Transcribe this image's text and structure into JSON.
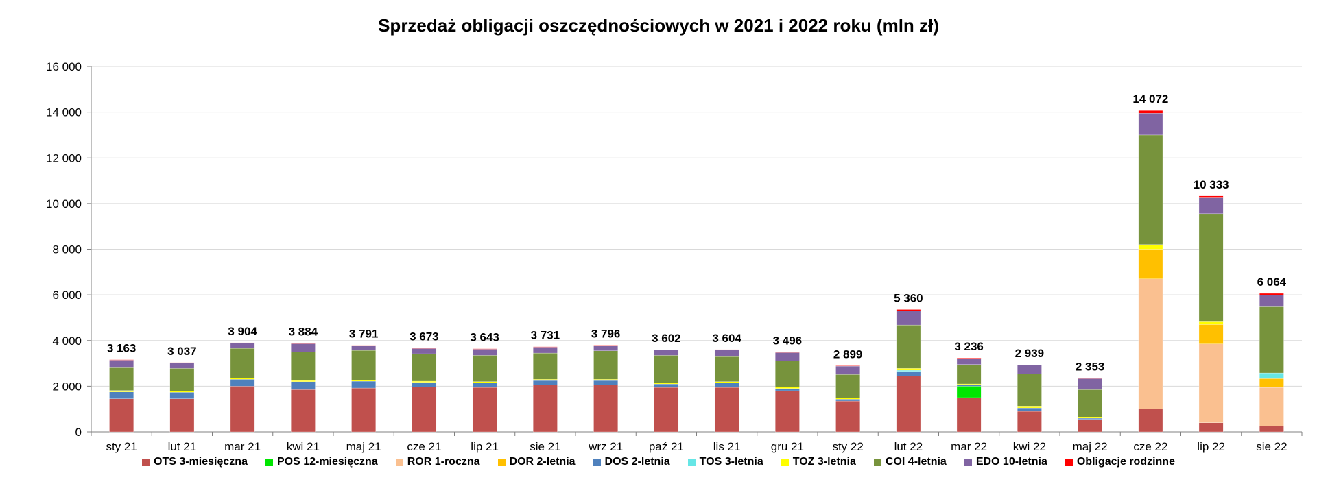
{
  "chart_data": {
    "type": "bar",
    "stacked": true,
    "title": "Sprzedaż obligacji oszczędnościowych w 2021 i 2022 roku (mln zł)",
    "xlabel": "",
    "ylabel": "",
    "ylim": [
      0,
      16000
    ],
    "yticks": [
      0,
      2000,
      4000,
      6000,
      8000,
      10000,
      12000,
      14000,
      16000
    ],
    "ytick_labels": [
      "0",
      "2 000",
      "4 000",
      "6 000",
      "8 000",
      "10 000",
      "12 000",
      "14 000",
      "16 000"
    ],
    "grid": true,
    "legend_position": "bottom",
    "categories": [
      "sty 21",
      "lut 21",
      "mar 21",
      "kwi 21",
      "maj 21",
      "cze 21",
      "lip 21",
      "sie 21",
      "wrz 21",
      "paź 21",
      "lis 21",
      "gru 21",
      "sty 22",
      "lut 22",
      "mar 22",
      "kwi 22",
      "maj 22",
      "cze 22",
      "lip 22",
      "sie 22"
    ],
    "totals": [
      3163,
      3037,
      3904,
      3884,
      3791,
      3673,
      3643,
      3731,
      3796,
      3602,
      3604,
      3496,
      2899,
      5360,
      3236,
      2939,
      2353,
      14072,
      10333,
      6064
    ],
    "total_labels": [
      "3 163",
      "3 037",
      "3 904",
      "3 884",
      "3 791",
      "3 673",
      "3 643",
      "3 731",
      "3 796",
      "3 602",
      "3 604",
      "3 496",
      "2 899",
      "5 360",
      "3 236",
      "2 939",
      "2 353",
      "14 072",
      "10 333",
      "6 064"
    ],
    "series": [
      {
        "name": "OTS 3-miesięczna",
        "color": "#C0504D",
        "values": [
          1450,
          1450,
          2000,
          1850,
          1920,
          1970,
          1950,
          2050,
          2050,
          1950,
          1950,
          1800,
          1350,
          2450,
          1500,
          900,
          550,
          1000,
          400,
          250
        ]
      },
      {
        "name": "POS 12-miesięczna",
        "color": "#00E600",
        "values": [
          0,
          0,
          0,
          0,
          0,
          0,
          0,
          0,
          0,
          0,
          0,
          0,
          0,
          0,
          500,
          0,
          0,
          0,
          0,
          0
        ]
      },
      {
        "name": "ROR 1-roczna",
        "color": "#FAC090",
        "values": [
          0,
          0,
          0,
          0,
          0,
          0,
          0,
          0,
          0,
          0,
          0,
          0,
          0,
          0,
          0,
          0,
          0,
          5700,
          3450,
          1700
        ]
      },
      {
        "name": "DOR 2-letnia",
        "color": "#FFC000",
        "values": [
          0,
          0,
          0,
          0,
          0,
          0,
          0,
          0,
          0,
          0,
          0,
          0,
          0,
          0,
          0,
          0,
          0,
          1300,
          850,
          380
        ]
      },
      {
        "name": "DOS 2-letnia",
        "color": "#4F81BD",
        "values": [
          300,
          280,
          300,
          350,
          300,
          200,
          200,
          200,
          200,
          150,
          200,
          100,
          80,
          200,
          50,
          150,
          50,
          0,
          0,
          0
        ]
      },
      {
        "name": "TOS 3-letnia",
        "color": "#66E6E6",
        "values": [
          0,
          0,
          0,
          0,
          0,
          0,
          0,
          0,
          0,
          0,
          0,
          0,
          0,
          50,
          0,
          0,
          0,
          0,
          0,
          250
        ]
      },
      {
        "name": "TOZ 3-letnia",
        "color": "#FFFF00",
        "values": [
          60,
          50,
          60,
          50,
          50,
          50,
          50,
          50,
          50,
          50,
          50,
          60,
          50,
          80,
          50,
          80,
          50,
          200,
          150,
          0
        ]
      },
      {
        "name": "COI 4-letnia",
        "color": "#77933C",
        "values": [
          1000,
          1000,
          1300,
          1250,
          1300,
          1200,
          1150,
          1150,
          1250,
          1200,
          1100,
          1150,
          1030,
          1900,
          850,
          1400,
          1200,
          4800,
          4700,
          2900
        ]
      },
      {
        "name": "EDO 10-letnia",
        "color": "#8064A2",
        "values": [
          330,
          240,
          220,
          360,
          200,
          230,
          270,
          260,
          220,
          230,
          280,
          360,
          370,
          620,
          260,
          390,
          480,
          950,
          700,
          500
        ]
      },
      {
        "name": "Obligacje rodzinne",
        "color": "#FF0000",
        "values": [
          23,
          17,
          24,
          24,
          21,
          23,
          23,
          21,
          26,
          22,
          24,
          26,
          19,
          60,
          26,
          19,
          23,
          122,
          83,
          84
        ]
      }
    ]
  }
}
